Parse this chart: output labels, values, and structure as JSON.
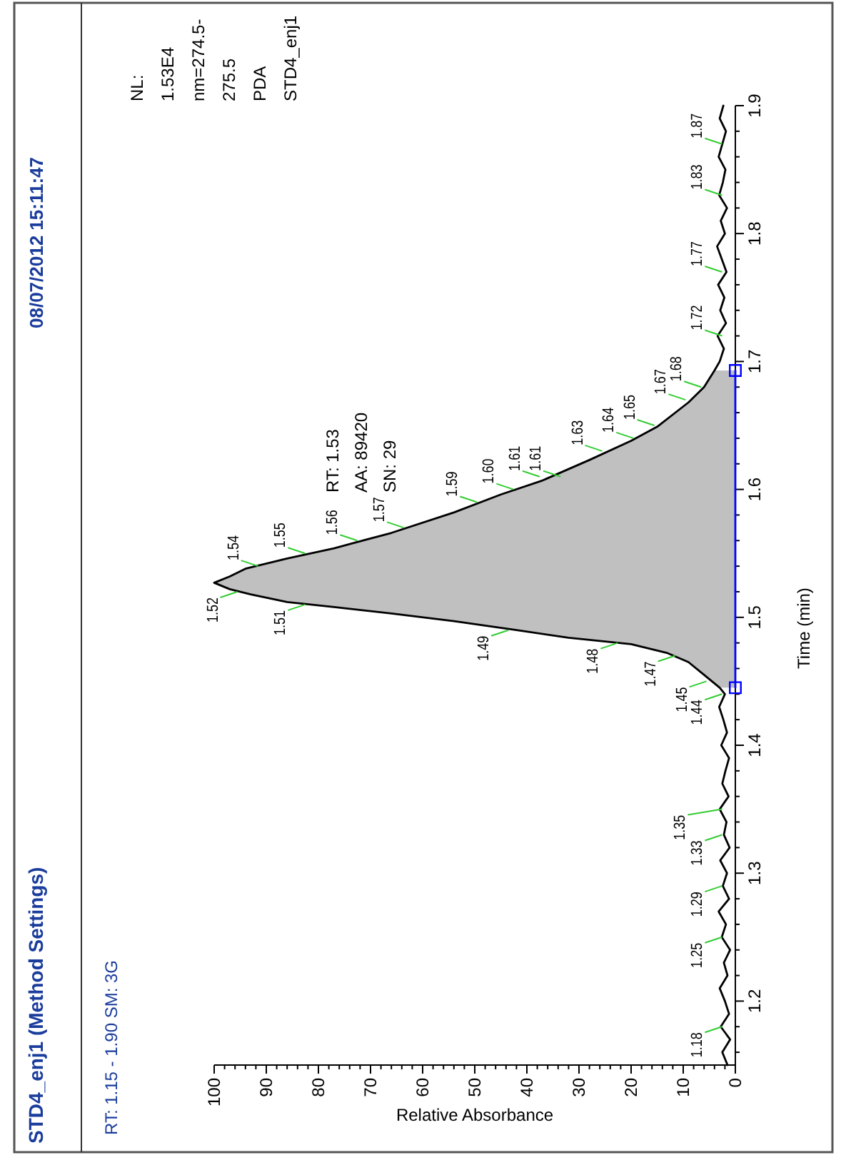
{
  "chart_data": {
    "type": "line",
    "orientation": "horizontal",
    "title": "STD4_enj1   (Method Settings)",
    "subtitle": "RT: 1.15 - 1.90  SM: 3G",
    "xlabel": "Relative Absorbance",
    "ylabel": "Time (min)",
    "ylim": [
      1.15,
      1.9
    ],
    "yticks": [
      1.2,
      1.3,
      1.4,
      1.5,
      1.6,
      1.7,
      1.8,
      1.9,
      {
        "value": 1.16,
        "label": null
      },
      {
        "value": 1.18,
        "label": null
      },
      {
        "value": 1.22,
        "label": null
      },
      {
        "value": 1.24,
        "label": null
      },
      {
        "value": 1.26,
        "label": null
      },
      {
        "value": 1.28,
        "label": null
      },
      {
        "value": 1.32,
        "label": null
      },
      {
        "value": 1.34,
        "label": null
      },
      {
        "value": 1.36,
        "label": null
      },
      {
        "value": 1.38,
        "label": null
      },
      {
        "value": 1.42,
        "label": null
      },
      {
        "value": 1.44,
        "label": null
      },
      {
        "value": 1.46,
        "label": null
      },
      {
        "value": 1.48,
        "label": null
      },
      {
        "value": 1.52,
        "label": null
      },
      {
        "value": 1.54,
        "label": null
      },
      {
        "value": 1.56,
        "label": null
      },
      {
        "value": 1.58,
        "label": null
      },
      {
        "value": 1.62,
        "label": null
      },
      {
        "value": 1.64,
        "label": null
      },
      {
        "value": 1.66,
        "label": null
      },
      {
        "value": 1.68,
        "label": null
      },
      {
        "value": 1.72,
        "label": null
      },
      {
        "value": 1.74,
        "label": null
      },
      {
        "value": 1.76,
        "label": null
      },
      {
        "value": 1.78,
        "label": null
      },
      {
        "value": 1.82,
        "label": null
      },
      {
        "value": 1.84,
        "label": null
      },
      {
        "value": 1.86,
        "label": null
      },
      {
        "value": 1.88,
        "label": null
      }
    ],
    "xlim": [
      100,
      0
    ],
    "xticks": [
      100,
      90,
      80,
      70,
      60,
      50,
      40,
      30,
      20,
      10,
      0,
      {
        "value": 98,
        "label": null
      },
      {
        "value": 96,
        "label": null
      },
      {
        "value": 94,
        "label": null
      },
      {
        "value": 92,
        "label": null
      },
      {
        "value": 88,
        "label": null
      },
      {
        "value": 86,
        "label": null
      },
      {
        "value": 84,
        "label": null
      },
      {
        "value": 82,
        "label": null
      },
      {
        "value": 78,
        "label": null
      },
      {
        "value": 76,
        "label": null
      },
      {
        "value": 74,
        "label": null
      },
      {
        "value": 72,
        "label": null
      },
      {
        "value": 68,
        "label": null
      },
      {
        "value": 66,
        "label": null
      },
      {
        "value": 64,
        "label": null
      },
      {
        "value": 62,
        "label": null
      },
      {
        "value": 58,
        "label": null
      },
      {
        "value": 56,
        "label": null
      },
      {
        "value": 54,
        "label": null
      },
      {
        "value": 52,
        "label": null
      },
      {
        "value": 48,
        "label": null
      },
      {
        "value": 46,
        "label": null
      },
      {
        "value": 44,
        "label": null
      },
      {
        "value": 42,
        "label": null
      },
      {
        "value": 38,
        "label": null
      },
      {
        "value": 36,
        "label": null
      },
      {
        "value": 34,
        "label": null
      },
      {
        "value": 32,
        "label": null
      },
      {
        "value": 28,
        "label": null
      },
      {
        "value": 26,
        "label": null
      },
      {
        "value": 24,
        "label": null
      },
      {
        "value": 22,
        "label": null
      },
      {
        "value": 18,
        "label": null
      },
      {
        "value": 16,
        "label": null
      },
      {
        "value": 14,
        "label": null
      },
      {
        "value": 12,
        "label": null
      },
      {
        "value": 8,
        "label": null
      },
      {
        "value": 6,
        "label": null
      },
      {
        "value": 4,
        "label": null
      },
      {
        "value": 2,
        "label": null
      }
    ],
    "series": [
      {
        "type": "area",
        "color": "#c0c0c0",
        "x": [
          1.445,
          1.455,
          1.465,
          1.472,
          1.479,
          1.484,
          1.49,
          1.497,
          1.503,
          1.508,
          1.512,
          1.518,
          1.522,
          1.527,
          1.532,
          1.538,
          1.546,
          1.554,
          1.566,
          1.582,
          1.596,
          1.607,
          1.623,
          1.638,
          1.649,
          1.668,
          1.68,
          1.693
        ],
        "values": [
          3,
          6,
          9,
          13,
          20,
          32,
          42,
          54,
          66,
          77,
          86,
          93,
          97,
          100,
          97,
          94,
          86,
          77,
          66,
          54,
          45,
          37,
          28,
          20,
          15,
          9,
          6,
          4
        ]
      },
      {
        "type": "line",
        "color": "#000000",
        "x": [
          1.15,
          1.16,
          1.17,
          1.18,
          1.19,
          1.2,
          1.21,
          1.22,
          1.23,
          1.24,
          1.25,
          1.26,
          1.27,
          1.28,
          1.29,
          1.3,
          1.31,
          1.32,
          1.33,
          1.34,
          1.35,
          1.36,
          1.37,
          1.38,
          1.39,
          1.4,
          1.41,
          1.42,
          1.43,
          1.44,
          1.445,
          1.455,
          1.465,
          1.472,
          1.479,
          1.484,
          1.49,
          1.497,
          1.503,
          1.508,
          1.512,
          1.518,
          1.522,
          1.527,
          1.532,
          1.538,
          1.546,
          1.554,
          1.566,
          1.582,
          1.596,
          1.607,
          1.623,
          1.638,
          1.649,
          1.668,
          1.68,
          1.693,
          1.7,
          1.71,
          1.72,
          1.73,
          1.74,
          1.75,
          1.76,
          1.77,
          1.78,
          1.79,
          1.8,
          1.81,
          1.82,
          1.83,
          1.84,
          1.85,
          1.86,
          1.87,
          1.88,
          1.89,
          1.9
        ],
        "values": [
          1.5,
          2.5,
          1,
          2.8,
          1.2,
          2,
          3,
          1.5,
          2.2,
          1,
          2.6,
          1.8,
          3.2,
          1.2,
          2.4,
          1.6,
          2.9,
          1.1,
          2.2,
          1.7,
          3,
          1.3,
          2.5,
          1.9,
          1.2,
          2.7,
          1.6,
          2.3,
          3.1,
          2,
          3,
          6,
          9,
          13,
          20,
          32,
          42,
          54,
          66,
          77,
          86,
          93,
          97,
          100,
          97,
          94,
          86,
          77,
          66,
          54,
          45,
          37,
          28,
          20,
          15,
          9,
          6,
          4,
          3,
          2.2,
          3.4,
          1.8,
          2.9,
          2.1,
          3.3,
          1.7,
          2.6,
          3.5,
          2,
          2.8,
          1.6,
          3.1,
          2.4,
          1.9,
          3.2,
          2.5,
          1.8,
          3,
          2.3
        ]
      },
      {
        "type": "line",
        "color": "#0000ff",
        "marker": "square",
        "x": [
          1.445,
          1.693
        ],
        "values": [
          0,
          0
        ]
      }
    ],
    "annotations": [
      "08/07/2012 15:11:47",
      "RT: 1.53\nAA: 89420\nSN: 29",
      "NL:\n1.53E4\nnm=274.5-\n275.5\nPDA\nSTD4_enj1",
      {
        "text": "1.18",
        "y": 1.18,
        "x": 2
      },
      {
        "text": "1.25",
        "y": 1.25,
        "x": 2
      },
      {
        "text": "1.29",
        "y": 1.29,
        "x": 2
      },
      {
        "text": "1.33",
        "y": 1.33,
        "x": 2
      },
      {
        "text": "1.35",
        "y": 1.35,
        "x": 2
      },
      {
        "text": "1.44",
        "y": 1.44,
        "x": 2
      },
      {
        "text": "1.45",
        "y": 1.45,
        "x": 5
      },
      {
        "text": "1.47",
        "y": 1.47,
        "x": 11
      },
      {
        "text": "1.48",
        "y": 1.48,
        "x": 22
      },
      {
        "text": "1.49",
        "y": 1.49,
        "x": 43
      },
      {
        "text": "1.51",
        "y": 1.51,
        "x": 82
      },
      {
        "text": "1.52",
        "y": 1.52,
        "x": 95
      },
      {
        "text": "1.54",
        "y": 1.54,
        "x": 91
      },
      {
        "text": "1.55",
        "y": 1.55,
        "x": 82
      },
      {
        "text": "1.56",
        "y": 1.56,
        "x": 72
      },
      {
        "text": "1.57",
        "y": 1.57,
        "x": 63
      },
      {
        "text": "1.59",
        "y": 1.59,
        "x": 49
      },
      {
        "text": "1.60",
        "y": 1.6,
        "x": 42
      },
      {
        "text": "1.61",
        "y": 1.61,
        "x": 37
      },
      {
        "text": "1.61",
        "y": 1.61,
        "x": 33
      },
      {
        "text": "1.63",
        "y": 1.63,
        "x": 25
      },
      {
        "text": "1.64",
        "y": 1.64,
        "x": 19
      },
      {
        "text": "1.65",
        "y": 1.65,
        "x": 15
      },
      {
        "text": "1.67",
        "y": 1.67,
        "x": 9
      },
      {
        "text": "1.68",
        "y": 1.68,
        "x": 6
      },
      {
        "text": "1.72",
        "y": 1.72,
        "x": 2
      },
      {
        "text": "1.77",
        "y": 1.77,
        "x": 2
      },
      {
        "text": "1.83",
        "y": 1.83,
        "x": 2
      },
      {
        "text": "1.87",
        "y": 1.87,
        "x": 2
      }
    ]
  }
}
